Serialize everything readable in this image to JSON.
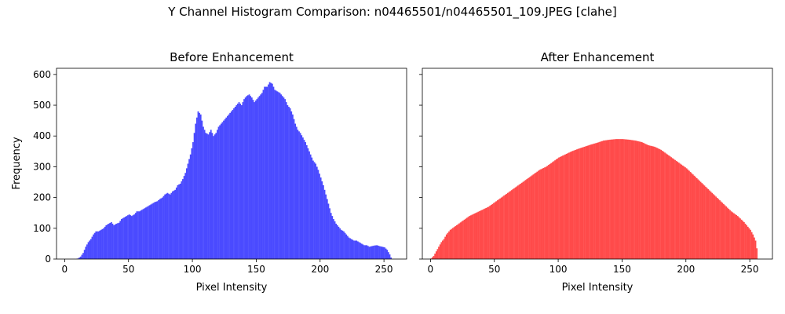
{
  "figure": {
    "suptitle": "Y Channel Histogram Comparison: n04465501/n04465501_109.JPEG [clahe]"
  },
  "chart_data": [
    {
      "type": "bar",
      "title": "Before Enhancement",
      "xlabel": "Pixel Intensity",
      "ylabel": "Frequency",
      "xlim": [
        -6.375,
        267.75
      ],
      "ylim": [
        0,
        620
      ],
      "xticks": [
        0,
        50,
        100,
        150,
        200,
        250
      ],
      "yticks": [
        0,
        100,
        200,
        300,
        400,
        500,
        600
      ],
      "bins": "0-255 (width 1)",
      "color": "#4a4aff",
      "grid": false,
      "keypoints": [
        [
          0,
          0
        ],
        [
          8,
          0
        ],
        [
          10,
          2
        ],
        [
          12,
          8
        ],
        [
          14,
          20
        ],
        [
          16,
          40
        ],
        [
          18,
          55
        ],
        [
          20,
          65
        ],
        [
          22,
          80
        ],
        [
          24,
          90
        ],
        [
          26,
          90
        ],
        [
          28,
          95
        ],
        [
          30,
          100
        ],
        [
          32,
          110
        ],
        [
          34,
          115
        ],
        [
          36,
          120
        ],
        [
          38,
          110
        ],
        [
          40,
          115
        ],
        [
          42,
          118
        ],
        [
          44,
          130
        ],
        [
          46,
          135
        ],
        [
          48,
          140
        ],
        [
          50,
          145
        ],
        [
          52,
          140
        ],
        [
          54,
          145
        ],
        [
          56,
          155
        ],
        [
          58,
          155
        ],
        [
          60,
          160
        ],
        [
          62,
          165
        ],
        [
          64,
          170
        ],
        [
          66,
          175
        ],
        [
          68,
          180
        ],
        [
          70,
          185
        ],
        [
          72,
          188
        ],
        [
          74,
          195
        ],
        [
          76,
          200
        ],
        [
          78,
          210
        ],
        [
          80,
          215
        ],
        [
          82,
          210
        ],
        [
          84,
          220
        ],
        [
          86,
          225
        ],
        [
          88,
          240
        ],
        [
          90,
          245
        ],
        [
          92,
          260
        ],
        [
          94,
          280
        ],
        [
          96,
          310
        ],
        [
          98,
          340
        ],
        [
          100,
          380
        ],
        [
          102,
          440
        ],
        [
          104,
          480
        ],
        [
          106,
          470
        ],
        [
          108,
          430
        ],
        [
          110,
          410
        ],
        [
          112,
          405
        ],
        [
          114,
          420
        ],
        [
          116,
          400
        ],
        [
          118,
          410
        ],
        [
          120,
          430
        ],
        [
          122,
          440
        ],
        [
          124,
          450
        ],
        [
          126,
          460
        ],
        [
          128,
          470
        ],
        [
          130,
          480
        ],
        [
          132,
          490
        ],
        [
          134,
          500
        ],
        [
          136,
          510
        ],
        [
          138,
          500
        ],
        [
          140,
          520
        ],
        [
          142,
          530
        ],
        [
          144,
          535
        ],
        [
          146,
          525
        ],
        [
          148,
          510
        ],
        [
          150,
          520
        ],
        [
          152,
          530
        ],
        [
          154,
          540
        ],
        [
          156,
          560
        ],
        [
          158,
          560
        ],
        [
          160,
          575
        ],
        [
          162,
          570
        ],
        [
          164,
          550
        ],
        [
          166,
          545
        ],
        [
          168,
          540
        ],
        [
          170,
          530
        ],
        [
          172,
          520
        ],
        [
          174,
          500
        ],
        [
          176,
          490
        ],
        [
          178,
          470
        ],
        [
          180,
          440
        ],
        [
          182,
          420
        ],
        [
          184,
          410
        ],
        [
          186,
          395
        ],
        [
          188,
          380
        ],
        [
          190,
          360
        ],
        [
          192,
          340
        ],
        [
          194,
          320
        ],
        [
          196,
          310
        ],
        [
          198,
          290
        ],
        [
          200,
          265
        ],
        [
          202,
          240
        ],
        [
          204,
          210
        ],
        [
          206,
          180
        ],
        [
          208,
          150
        ],
        [
          210,
          130
        ],
        [
          212,
          115
        ],
        [
          214,
          105
        ],
        [
          216,
          95
        ],
        [
          218,
          90
        ],
        [
          220,
          80
        ],
        [
          222,
          70
        ],
        [
          224,
          65
        ],
        [
          226,
          60
        ],
        [
          228,
          60
        ],
        [
          230,
          55
        ],
        [
          232,
          50
        ],
        [
          234,
          45
        ],
        [
          236,
          45
        ],
        [
          238,
          40
        ],
        [
          240,
          42
        ],
        [
          242,
          44
        ],
        [
          244,
          45
        ],
        [
          246,
          42
        ],
        [
          248,
          40
        ],
        [
          250,
          38
        ],
        [
          252,
          30
        ],
        [
          254,
          15
        ],
        [
          255,
          5
        ]
      ]
    },
    {
      "type": "bar",
      "title": "After Enhancement",
      "xlabel": "Pixel Intensity",
      "ylabel": "",
      "xlim": [
        -6.375,
        267.75
      ],
      "ylim": [
        0,
        620
      ],
      "xticks": [
        0,
        50,
        100,
        150,
        200,
        250
      ],
      "yticks": [
        0,
        100,
        200,
        300,
        400,
        500,
        600
      ],
      "bins": "0-255 (width 1)",
      "color": "#ff4a4a",
      "grid": false,
      "keypoints": [
        [
          0,
          2
        ],
        [
          2,
          10
        ],
        [
          4,
          25
        ],
        [
          6,
          40
        ],
        [
          8,
          55
        ],
        [
          10,
          65
        ],
        [
          12,
          80
        ],
        [
          15,
          95
        ],
        [
          20,
          110
        ],
        [
          25,
          125
        ],
        [
          30,
          140
        ],
        [
          35,
          150
        ],
        [
          40,
          160
        ],
        [
          45,
          170
        ],
        [
          50,
          185
        ],
        [
          55,
          200
        ],
        [
          60,
          215
        ],
        [
          65,
          230
        ],
        [
          70,
          245
        ],
        [
          75,
          260
        ],
        [
          80,
          275
        ],
        [
          85,
          290
        ],
        [
          90,
          300
        ],
        [
          95,
          315
        ],
        [
          100,
          330
        ],
        [
          105,
          340
        ],
        [
          110,
          350
        ],
        [
          115,
          358
        ],
        [
          120,
          365
        ],
        [
          125,
          372
        ],
        [
          130,
          378
        ],
        [
          135,
          385
        ],
        [
          140,
          388
        ],
        [
          145,
          390
        ],
        [
          150,
          390
        ],
        [
          155,
          388
        ],
        [
          160,
          385
        ],
        [
          165,
          380
        ],
        [
          170,
          370
        ],
        [
          175,
          365
        ],
        [
          180,
          355
        ],
        [
          185,
          340
        ],
        [
          190,
          325
        ],
        [
          195,
          310
        ],
        [
          200,
          295
        ],
        [
          205,
          275
        ],
        [
          210,
          255
        ],
        [
          215,
          235
        ],
        [
          220,
          215
        ],
        [
          225,
          195
        ],
        [
          230,
          175
        ],
        [
          235,
          155
        ],
        [
          240,
          140
        ],
        [
          245,
          120
        ],
        [
          248,
          105
        ],
        [
          250,
          95
        ],
        [
          252,
          80
        ],
        [
          254,
          60
        ],
        [
          255,
          35
        ]
      ]
    }
  ]
}
